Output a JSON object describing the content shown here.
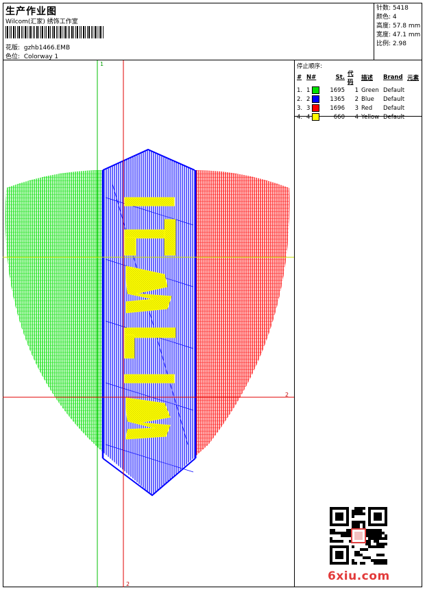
{
  "header": {
    "title": "生产作业图",
    "subtitle": "Wilcom(汇家) 绣饰工作室",
    "design_label": "花版:",
    "design_value": "gzhb1466.EMB",
    "colorway_label": "色位:",
    "colorway_value": "Colorway 1"
  },
  "stats": [
    {
      "label": "针数:",
      "value": "5418"
    },
    {
      "label": "颜色:",
      "value": "4"
    },
    {
      "label": "高度:",
      "value": "57.8 mm"
    },
    {
      "label": "宽度:",
      "value": "47.1 mm"
    },
    {
      "label": "比例:",
      "value": "2.98"
    }
  ],
  "stop_sequence": {
    "title": "停止顺序:",
    "columns": [
      "#",
      "N#",
      "St.",
      "代码",
      "描述",
      "Brand",
      "元素"
    ],
    "rows": [
      {
        "num": "1.",
        "n": "1",
        "color": "#00e000",
        "st": "1695",
        "code": "1",
        "desc": "Green",
        "brand": "Default"
      },
      {
        "num": "2.",
        "n": "2",
        "color": "#0000ff",
        "st": "1365",
        "code": "2",
        "desc": "Blue",
        "brand": "Default"
      },
      {
        "num": "3.",
        "n": "3",
        "color": "#ff0000",
        "st": "1696",
        "code": "3",
        "desc": "Red",
        "brand": "Default"
      },
      {
        "num": "4.",
        "n": "4",
        "color": "#ffff00",
        "st": "660",
        "code": "4",
        "desc": "Yellow",
        "brand": "Default"
      }
    ]
  },
  "guides": {
    "vertical_green_label": "1",
    "horizontal_red_label": "2",
    "vertical_red_label": "2"
  },
  "colors": {
    "green": "#00e000",
    "blue": "#0000ff",
    "red": "#ff0000",
    "yellow": "#ffff00",
    "guide_green": "#00c000",
    "guide_red": "#e00000"
  },
  "watermark": "6xiu.com"
}
